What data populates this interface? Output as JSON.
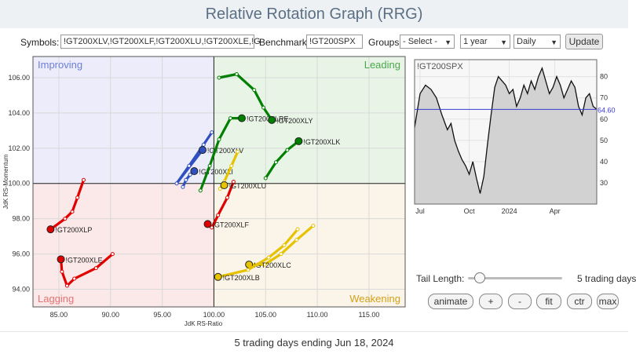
{
  "title": "Relative Rotation Graph (RRG)",
  "toolbar": {
    "symbols_label": "Symbols:",
    "symbols_value": "!GT200XLV,!GT200XLF,!GT200XLU,!GT200XLE,!G",
    "benchmark_label": "Benchmark:",
    "benchmark_value": "!GT200SPX",
    "groups_label": "Groups:",
    "groups_value": "- Select -",
    "period_value": "1 year",
    "frequency_value": "Daily",
    "update_label": "Update"
  },
  "chart_data": [
    {
      "type": "scatter",
      "title": "",
      "xlabel": "JdK RS-Ratio",
      "ylabel": "JdK RS-Momentum",
      "xlim": [
        82.5,
        118.5
      ],
      "ylim": [
        93,
        107.2
      ],
      "x_ticks": [
        85,
        90,
        95,
        100,
        105,
        110,
        115
      ],
      "y_ticks": [
        94,
        96,
        98,
        100,
        102,
        104,
        106
      ],
      "quadrants": {
        "top_left": {
          "label": "Improving",
          "color": "#6b7fd7",
          "fill": "#ececfa"
        },
        "top_right": {
          "label": "Leading",
          "color": "#4aa84a",
          "fill": "#e8f4e6"
        },
        "bottom_left": {
          "label": "Lagging",
          "color": "#e57373",
          "fill": "#fbe8e8"
        },
        "bottom_right": {
          "label": "Weakening",
          "color": "#d4a017",
          "fill": "#faf5e8"
        }
      },
      "series": [
        {
          "name": "!GT200XLP",
          "color": "#e00000",
          "points": [
            [
              87.4,
              100.2
            ],
            [
              86.8,
              99.2
            ],
            [
              86.3,
              98.4
            ],
            [
              85.6,
              98.0
            ],
            [
              84.2,
              97.4
            ]
          ]
        },
        {
          "name": "!GT200XLE",
          "color": "#e00000",
          "points": [
            [
              90.2,
              96.0
            ],
            [
              88.6,
              95.2
            ],
            [
              86.5,
              94.6
            ],
            [
              85.8,
              94.2
            ],
            [
              85.3,
              95.0
            ],
            [
              85.2,
              95.7
            ]
          ]
        },
        {
          "name": "!GT200XLV",
          "color": "#3050c0",
          "points": [
            [
              99.8,
              102.9
            ],
            [
              99.0,
              102.2
            ],
            [
              97.6,
              101.0
            ],
            [
              96.4,
              100.0
            ],
            [
              98.9,
              101.9
            ]
          ]
        },
        {
          "name": "!GT200XLI",
          "color": "#3050c0",
          "points": [
            [
              97.0,
              99.8
            ],
            [
              97.3,
              100.2
            ],
            [
              97.7,
              100.5
            ],
            [
              98.1,
              100.7
            ]
          ]
        },
        {
          "name": "!GT200XLF",
          "color": "#e00000",
          "points": [
            [
              101.9,
              100.1
            ],
            [
              101.3,
              99.2
            ],
            [
              100.4,
              98.2
            ],
            [
              99.8,
              97.5
            ],
            [
              99.4,
              97.7
            ]
          ]
        },
        {
          "name": "!GT200XLU",
          "color": "#e6c200",
          "points": [
            [
              102.3,
              101.8
            ],
            [
              101.7,
              101.0
            ],
            [
              101.0,
              100.1
            ],
            [
              100.6,
              99.7
            ],
            [
              101.0,
              99.9
            ]
          ]
        },
        {
          "name": "!GT200XLRE",
          "color": "#008000",
          "points": [
            [
              98.7,
              99.6
            ],
            [
              99.6,
              101.0
            ],
            [
              100.5,
              102.5
            ],
            [
              101.6,
              103.7
            ],
            [
              102.7,
              103.7
            ]
          ]
        },
        {
          "name": "!GT200XLY",
          "color": "#008000",
          "points": [
            [
              100.5,
              106.0
            ],
            [
              102.2,
              106.2
            ],
            [
              103.9,
              105.3
            ],
            [
              104.8,
              104.3
            ],
            [
              105.6,
              103.6
            ]
          ]
        },
        {
          "name": "!GT200XLK",
          "color": "#008000",
          "points": [
            [
              105.0,
              100.3
            ],
            [
              106.0,
              101.2
            ],
            [
              107.1,
              101.9
            ],
            [
              108.2,
              102.4
            ]
          ]
        },
        {
          "name": "!GT200XLC",
          "color": "#e6c200",
          "points": [
            [
              109.6,
              97.6
            ],
            [
              108.0,
              96.8
            ],
            [
              106.5,
              96.0
            ],
            [
              104.9,
              95.4
            ],
            [
              103.4,
              95.4
            ]
          ]
        },
        {
          "name": "!GT200XLB",
          "color": "#e6c200",
          "points": [
            [
              108.1,
              97.4
            ],
            [
              106.8,
              96.5
            ],
            [
              105.3,
              95.8
            ],
            [
              103.3,
              95.1
            ],
            [
              100.4,
              94.7
            ]
          ]
        }
      ]
    },
    {
      "type": "area",
      "title": "!GT200SPX",
      "xlim": [
        0,
        100
      ],
      "ylim": [
        20,
        88
      ],
      "x_tick_labels": [
        "Jul",
        "Oct",
        "2024",
        "Apr"
      ],
      "x_tick_positions": [
        3,
        30,
        52,
        77
      ],
      "y_ticks": [
        30,
        40,
        50,
        60,
        70,
        80
      ],
      "last_value_label": "64.60",
      "last_value": 64.6,
      "x": [
        0,
        3,
        6,
        9,
        12,
        15,
        18,
        20,
        22,
        24,
        26,
        28,
        30,
        32,
        34,
        36,
        38,
        40,
        42,
        44,
        46,
        48,
        50,
        52,
        54,
        56,
        58,
        60,
        62,
        64,
        66,
        68,
        70,
        72,
        74,
        76,
        78,
        80,
        82,
        84,
        86,
        88,
        90,
        92,
        94,
        96,
        98,
        100
      ],
      "values": [
        56,
        72,
        76,
        74,
        70,
        62,
        55,
        58,
        50,
        45,
        41,
        38,
        34,
        40,
        32,
        25,
        33,
        48,
        62,
        75,
        80,
        78,
        76,
        72,
        74,
        66,
        70,
        76,
        72,
        78,
        74,
        80,
        84,
        78,
        72,
        75,
        80,
        76,
        70,
        74,
        78,
        75,
        66,
        62,
        70,
        72,
        66,
        64.6
      ]
    }
  ],
  "controls": {
    "tail_length_label": "Tail Length:",
    "tail_length_value": "5 trading days",
    "tail_length": 0.12,
    "buttons": [
      "animate",
      "+",
      "-",
      "fit",
      "ctr",
      "max"
    ]
  },
  "footer": "5 trading days ending Jun 18, 2024"
}
